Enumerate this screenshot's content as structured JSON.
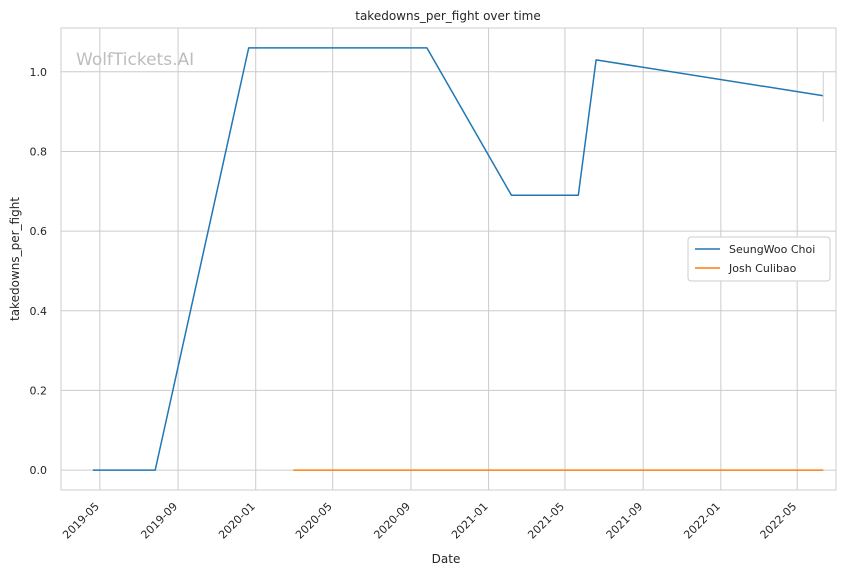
{
  "watermark": "WolfTickets.AI",
  "chart_data": {
    "type": "line",
    "title": "takedowns_per_fight over time",
    "xlabel": "Date",
    "ylabel": "takedowns_per_fight",
    "xlim": [
      "2019-03-01",
      "2022-07-01"
    ],
    "ylim": [
      -0.05,
      1.11
    ],
    "yticks": [
      0.0,
      0.2,
      0.4,
      0.6,
      0.8,
      1.0
    ],
    "ytick_labels": [
      "0.0",
      "0.2",
      "0.4",
      "0.6",
      "0.8",
      "1.0"
    ],
    "xticks": [
      "2019-05-01",
      "2019-09-01",
      "2020-01-01",
      "2020-05-01",
      "2020-09-01",
      "2021-01-01",
      "2021-05-01",
      "2021-09-01",
      "2022-01-01",
      "2022-05-01"
    ],
    "xtick_labels": [
      "2019-05",
      "2019-09",
      "2020-01",
      "2020-05",
      "2020-09",
      "2021-01",
      "2021-05",
      "2021-09",
      "2022-01",
      "2022-05"
    ],
    "grid": true,
    "legend_position": "center-right",
    "series": [
      {
        "name": "SeungWoo Choi",
        "color": "#1f77b4",
        "x": [
          "2019-04-20",
          "2019-07-27",
          "2019-12-21",
          "2020-09-26",
          "2021-02-06",
          "2021-05-22",
          "2021-06-19",
          "2022-06-11"
        ],
        "y": [
          0.0,
          0.0,
          1.06,
          1.06,
          0.69,
          0.69,
          1.03,
          0.94
        ]
      },
      {
        "name": "Josh Culibao",
        "color": "#ff7f0e",
        "x": [
          "2020-02-29",
          "2022-06-11"
        ],
        "y": [
          0.0,
          0.0
        ]
      }
    ]
  }
}
